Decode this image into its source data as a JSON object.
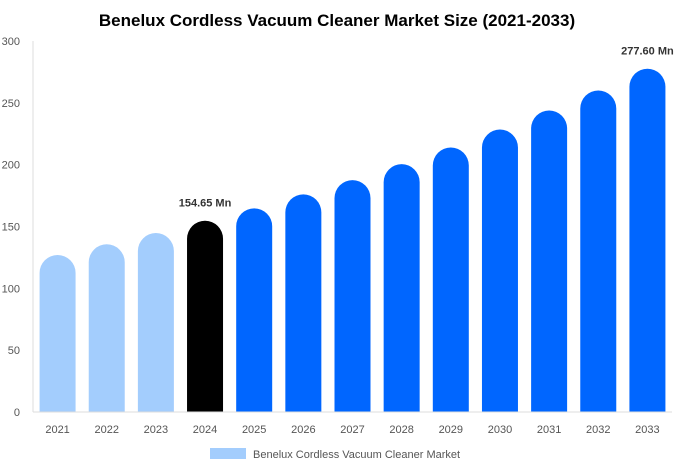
{
  "chart_data": {
    "type": "bar",
    "title": "Benelux Cordless Vacuum Cleaner Market Size (2021-2033)",
    "xlabel": "",
    "ylabel": "",
    "ylim": [
      0,
      300
    ],
    "yticks": [
      0,
      50,
      100,
      150,
      200,
      250,
      300
    ],
    "grid": false,
    "legend_placement": "bottom",
    "categories": [
      "2021",
      "2022",
      "2023",
      "2024",
      "2025",
      "2026",
      "2027",
      "2028",
      "2029",
      "2030",
      "2031",
      "2032",
      "2033"
    ],
    "series": [
      {
        "name": "Benelux Cordless Vacuum Cleaner Market",
        "values": [
          127,
          135.6,
          144.7,
          154.65,
          164.7,
          176,
          187.5,
          200.4,
          213.9,
          228.4,
          243.8,
          260,
          277.6
        ]
      }
    ],
    "bar_colors": [
      "#a3cdfd",
      "#a3cdfd",
      "#a3cdfd",
      "#000000",
      "#0066ff",
      "#0066ff",
      "#0066ff",
      "#0066ff",
      "#0066ff",
      "#0066ff",
      "#0066ff",
      "#0066ff",
      "#0066ff"
    ],
    "legend_color": "#a3cdfd",
    "annotations": [
      {
        "category": "2024",
        "text": "154.65 Mn"
      },
      {
        "category": "2033",
        "text": "277.60 Mn"
      }
    ]
  }
}
